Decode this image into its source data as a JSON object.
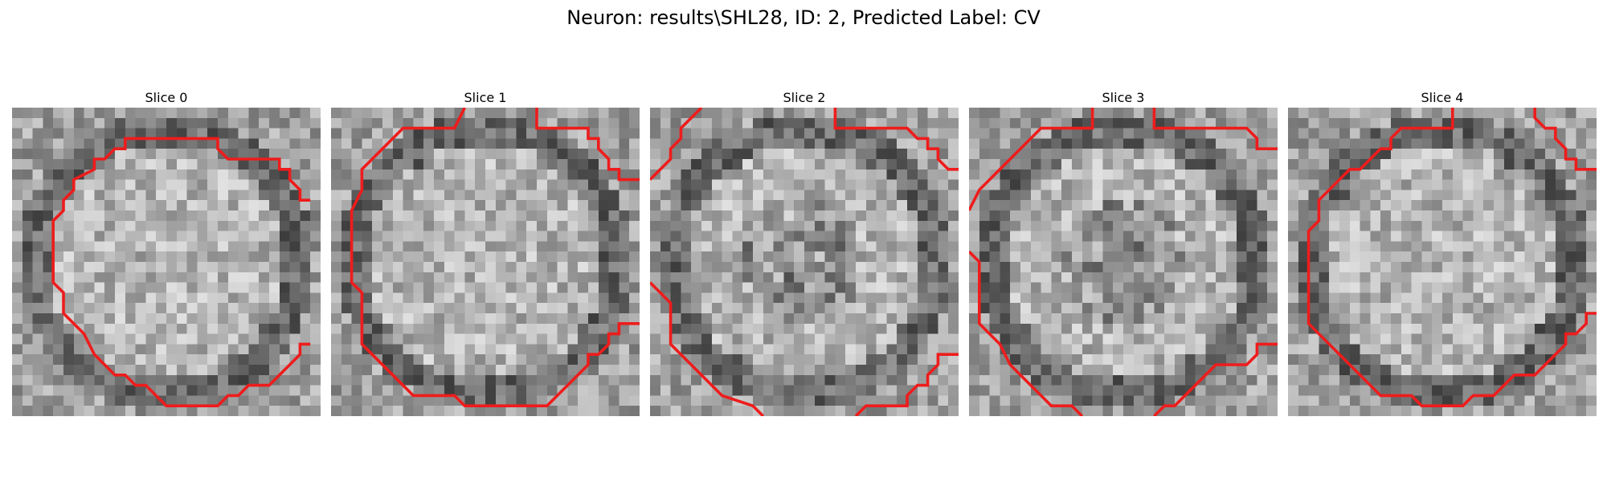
{
  "figure": {
    "title": "Neuron: results\\SHL28, ID: 2, Predicted Label: CV"
  },
  "panels": [
    {
      "title": "Slice 0",
      "seed": 11,
      "dark_center": false
    },
    {
      "title": "Slice 1",
      "seed": 23,
      "dark_center": false
    },
    {
      "title": "Slice 2",
      "seed": 37,
      "dark_center": true
    },
    {
      "title": "Slice 3",
      "seed": 53,
      "dark_center": true
    },
    {
      "title": "Slice 4",
      "seed": 71,
      "dark_center": false
    }
  ],
  "colors": {
    "contour": "#ee1c1c"
  }
}
